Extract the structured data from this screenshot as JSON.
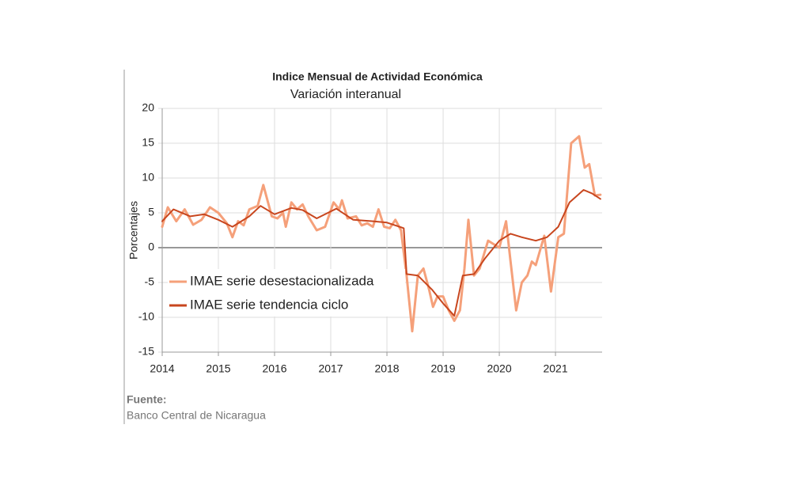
{
  "chart_data": {
    "type": "line",
    "title": "Indice Mensual de  Actividad Económica",
    "subtitle": "Variación interanual",
    "y_label": "Porcentajes",
    "source_label": "Fuente:",
    "source": "Banco Central de Nicaragua",
    "xlim": [
      2014,
      2021.83
    ],
    "xticks": [
      2014,
      2015,
      2016,
      2017,
      2018,
      2019,
      2020,
      2021
    ],
    "ylim": [
      -15,
      20
    ],
    "yticks": [
      -15,
      -10,
      -5,
      0,
      5,
      10,
      15,
      20
    ],
    "grid": true,
    "legend": "left",
    "series": [
      {
        "name": "IMAE serie desestacionalizada",
        "color": "#f5a07a",
        "x": [
          2014.0,
          2014.1,
          2014.25,
          2014.4,
          2014.55,
          2014.7,
          2014.85,
          2015.0,
          2015.15,
          2015.25,
          2015.35,
          2015.45,
          2015.55,
          2015.7,
          2015.8,
          2015.95,
          2016.05,
          2016.15,
          2016.2,
          2016.3,
          2016.4,
          2016.5,
          2016.6,
          2016.75,
          2016.9,
          2017.05,
          2017.15,
          2017.2,
          2017.3,
          2017.45,
          2017.55,
          2017.65,
          2017.75,
          2017.85,
          2017.95,
          2018.05,
          2018.15,
          2018.25,
          2018.35,
          2018.45,
          2018.55,
          2018.65,
          2018.75,
          2018.82,
          2018.9,
          2019.0,
          2019.1,
          2019.2,
          2019.3,
          2019.38,
          2019.45,
          2019.55,
          2019.65,
          2019.8,
          2019.9,
          2020.0,
          2020.12,
          2020.2,
          2020.3,
          2020.4,
          2020.5,
          2020.58,
          2020.65,
          2020.8,
          2020.92,
          2021.05,
          2021.15,
          2021.28,
          2021.42,
          2021.52,
          2021.6,
          2021.7,
          2021.8
        ],
        "values": [
          3,
          5.8,
          3.8,
          5.5,
          3.3,
          4.0,
          5.8,
          5.0,
          3.5,
          1.5,
          3.8,
          3.2,
          5.5,
          6.0,
          9.0,
          4.5,
          4.2,
          5.0,
          3.0,
          6.5,
          5.5,
          6.2,
          4.5,
          2.5,
          3.0,
          6.5,
          5.5,
          6.8,
          4.2,
          4.5,
          3.2,
          3.5,
          3.0,
          5.5,
          3.0,
          2.8,
          4.0,
          2.5,
          -4,
          -12.0,
          -4,
          -3.0,
          -6,
          -8.5,
          -7,
          -7.0,
          -9,
          -10.5,
          -9,
          -3,
          4.0,
          -4.0,
          -3,
          1.0,
          0.5,
          0,
          3.8,
          -2,
          -9.0,
          -5,
          -4,
          -2.0,
          -2.5,
          1.7,
          -6.3,
          1.5,
          2.0,
          15.0,
          16.0,
          11.5,
          12.0,
          7.5,
          7.6
        ]
      },
      {
        "name": "IMAE serie  tendencia ciclo",
        "color": "#c8461e",
        "x": [
          2014.0,
          2014.2,
          2014.5,
          2014.75,
          2015.0,
          2015.25,
          2015.55,
          2015.75,
          2016.0,
          2016.3,
          2016.5,
          2016.75,
          2017.1,
          2017.4,
          2017.75,
          2018.0,
          2018.3,
          2018.35,
          2018.55,
          2018.8,
          2019.0,
          2019.2,
          2019.35,
          2019.55,
          2019.75,
          2020.0,
          2020.2,
          2020.4,
          2020.65,
          2020.85,
          2021.05,
          2021.25,
          2021.5,
          2021.65,
          2021.8
        ],
        "values": [
          3.8,
          5.5,
          4.5,
          4.8,
          4.0,
          3.0,
          4.5,
          6.0,
          4.8,
          5.7,
          5.4,
          4.2,
          5.6,
          4.0,
          3.8,
          3.6,
          2.8,
          -3.8,
          -4.0,
          -6,
          -8,
          -9.8,
          -4.0,
          -3.8,
          -1.5,
          1.0,
          2.0,
          1.5,
          1.0,
          1.5,
          3.0,
          6.5,
          8.3,
          7.8,
          7.0
        ]
      }
    ]
  }
}
